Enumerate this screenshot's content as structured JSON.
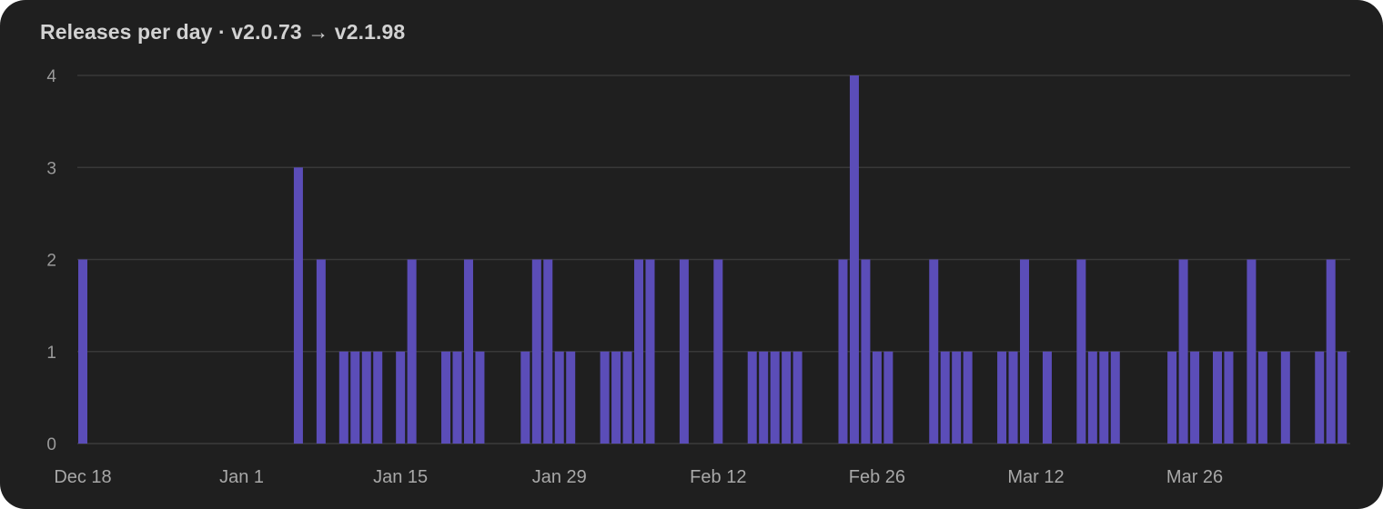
{
  "title": "Releases per day · v2.0.73 → v2.1.98",
  "colors": {
    "bar": "#5b4db8",
    "background": "#1f1f1f"
  },
  "chart_data": {
    "type": "bar",
    "title": "Releases per day · v2.0.73 → v2.1.98",
    "xlabel": "",
    "ylabel": "",
    "x_start": "Dec 18",
    "x_end": "Apr 9",
    "ylim": [
      0,
      4
    ],
    "yticks": [
      0,
      1,
      2,
      3,
      4
    ],
    "grid": true,
    "xticks": [
      {
        "label": "Dec 18",
        "day": "Dec 18"
      },
      {
        "label": "Jan 1",
        "day": "Jan 1"
      },
      {
        "label": "Jan 15",
        "day": "Jan 15"
      },
      {
        "label": "Jan 29",
        "day": "Jan 29"
      },
      {
        "label": "Feb 12",
        "day": "Feb 12"
      },
      {
        "label": "Feb 26",
        "day": "Feb 26"
      },
      {
        "label": "Mar 12",
        "day": "Mar 12"
      },
      {
        "label": "Mar 26",
        "day": "Mar 26"
      }
    ],
    "values": [
      {
        "date": "Dec 18",
        "count": 2
      },
      {
        "date": "Jan 6",
        "count": 3
      },
      {
        "date": "Jan 8",
        "count": 2
      },
      {
        "date": "Jan 10",
        "count": 1
      },
      {
        "date": "Jan 11",
        "count": 1
      },
      {
        "date": "Jan 12",
        "count": 1
      },
      {
        "date": "Jan 13",
        "count": 1
      },
      {
        "date": "Jan 15",
        "count": 1
      },
      {
        "date": "Jan 16",
        "count": 2
      },
      {
        "date": "Jan 19",
        "count": 1
      },
      {
        "date": "Jan 20",
        "count": 1
      },
      {
        "date": "Jan 21",
        "count": 2
      },
      {
        "date": "Jan 22",
        "count": 1
      },
      {
        "date": "Jan 26",
        "count": 1
      },
      {
        "date": "Jan 27",
        "count": 2
      },
      {
        "date": "Jan 28",
        "count": 2
      },
      {
        "date": "Jan 29",
        "count": 1
      },
      {
        "date": "Jan 30",
        "count": 1
      },
      {
        "date": "Feb 2",
        "count": 1
      },
      {
        "date": "Feb 3",
        "count": 1
      },
      {
        "date": "Feb 4",
        "count": 1
      },
      {
        "date": "Feb 5",
        "count": 2
      },
      {
        "date": "Feb 6",
        "count": 2
      },
      {
        "date": "Feb 9",
        "count": 2
      },
      {
        "date": "Feb 12",
        "count": 2
      },
      {
        "date": "Feb 15",
        "count": 1
      },
      {
        "date": "Feb 16",
        "count": 1
      },
      {
        "date": "Feb 17",
        "count": 1
      },
      {
        "date": "Feb 18",
        "count": 1
      },
      {
        "date": "Feb 19",
        "count": 1
      },
      {
        "date": "Feb 23",
        "count": 2
      },
      {
        "date": "Feb 24",
        "count": 4
      },
      {
        "date": "Feb 25",
        "count": 2
      },
      {
        "date": "Feb 26",
        "count": 1
      },
      {
        "date": "Feb 27",
        "count": 1
      },
      {
        "date": "Mar 3",
        "count": 2
      },
      {
        "date": "Mar 4",
        "count": 1
      },
      {
        "date": "Mar 5",
        "count": 1
      },
      {
        "date": "Mar 6",
        "count": 1
      },
      {
        "date": "Mar 9",
        "count": 1
      },
      {
        "date": "Mar 10",
        "count": 1
      },
      {
        "date": "Mar 11",
        "count": 2
      },
      {
        "date": "Mar 13",
        "count": 1
      },
      {
        "date": "Mar 16",
        "count": 2
      },
      {
        "date": "Mar 17",
        "count": 1
      },
      {
        "date": "Mar 18",
        "count": 1
      },
      {
        "date": "Mar 19",
        "count": 1
      },
      {
        "date": "Mar 24",
        "count": 1
      },
      {
        "date": "Mar 25",
        "count": 2
      },
      {
        "date": "Mar 26",
        "count": 1
      },
      {
        "date": "Mar 28",
        "count": 1
      },
      {
        "date": "Mar 29",
        "count": 1
      },
      {
        "date": "Mar 31",
        "count": 2
      },
      {
        "date": "Apr 1",
        "count": 1
      },
      {
        "date": "Apr 3",
        "count": 1
      },
      {
        "date": "Apr 6",
        "count": 1
      },
      {
        "date": "Apr 7",
        "count": 2
      },
      {
        "date": "Apr 8",
        "count": 1
      }
    ]
  }
}
